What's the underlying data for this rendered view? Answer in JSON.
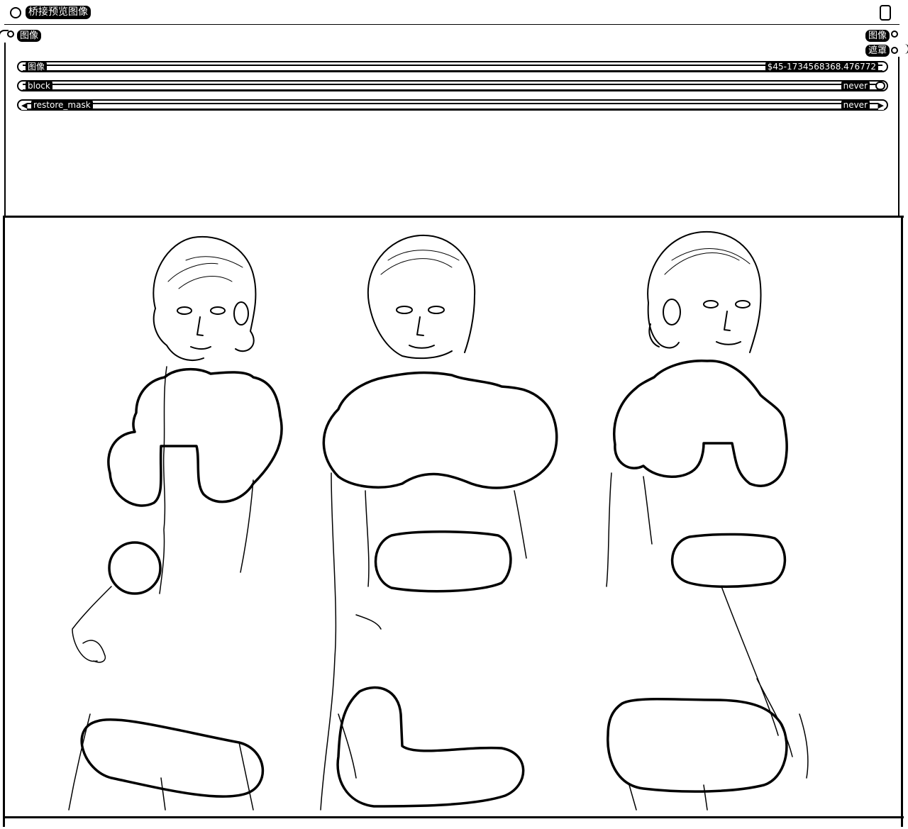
{
  "node": {
    "title": "桥接预览图像",
    "input_label": "图像",
    "output_labels": [
      "图像",
      "遮罩"
    ]
  },
  "widgets": {
    "image": {
      "label": "图像",
      "value": "$45-1734568368.476772"
    },
    "block": {
      "label": "block",
      "value": "never"
    },
    "restore_mask": {
      "label": "restore_mask",
      "value": "never"
    }
  },
  "preview": {
    "panel_count": 3
  }
}
